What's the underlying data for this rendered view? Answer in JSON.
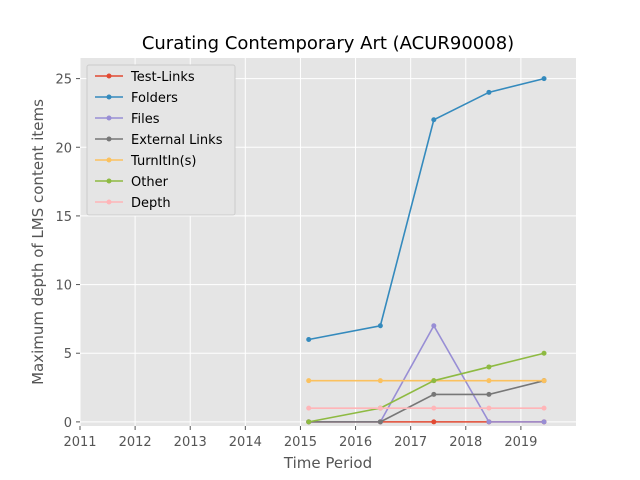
{
  "chart_data": {
    "type": "line",
    "title": "Curating Contemporary Art (ACUR90008)",
    "xlabel": "Time Period",
    "ylabel": "Maximum depth of LMS content items",
    "xlim": [
      2011,
      2020
    ],
    "ylim": [
      -0.3,
      26.5
    ],
    "xticks": [
      2011,
      2012,
      2013,
      2014,
      2015,
      2016,
      2017,
      2018,
      2019
    ],
    "yticks": [
      0,
      5,
      10,
      15,
      20,
      25
    ],
    "grid": true,
    "legend_position": "upper-left",
    "x": [
      2015.15,
      2016.45,
      2017.42,
      2018.42,
      2019.42
    ],
    "series": [
      {
        "name": "Test-Links",
        "color": "#E24A33",
        "values": [
          0,
          0,
          0,
          0,
          0
        ]
      },
      {
        "name": "Folders",
        "color": "#348ABD",
        "values": [
          6,
          7,
          22,
          24,
          25
        ]
      },
      {
        "name": "Files",
        "color": "#988ED5",
        "values": [
          0,
          0,
          7,
          0,
          0
        ]
      },
      {
        "name": "External Links",
        "color": "#777777",
        "values": [
          0,
          0,
          2,
          2,
          3
        ]
      },
      {
        "name": "TurnItIn(s)",
        "color": "#FBC15E",
        "values": [
          3,
          3,
          3,
          3,
          3
        ]
      },
      {
        "name": "Other",
        "color": "#8EBA42",
        "values": [
          0,
          1,
          3,
          4,
          5
        ]
      },
      {
        "name": "Depth",
        "color": "#FFB5B8",
        "values": [
          1,
          1,
          1,
          1,
          1
        ]
      }
    ]
  }
}
